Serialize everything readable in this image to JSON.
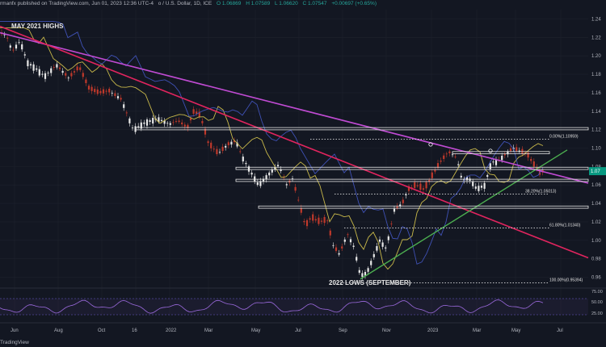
{
  "header": {
    "publisher": "rmanfx published on TradingView.com, Jun 01, 2023 12:36 UTC-4",
    "symbol": "o / U.S. Dollar, 1D, ICE",
    "o": "O 1.06869",
    "h": "H 1.07589",
    "l": "L 1.06620",
    "c": "C 1.07547",
    "chg": "+0.00697 (+0.65%)"
  },
  "footer": {
    "brand": "TradingView"
  },
  "annotations": {
    "may_highs": "MAY 2021 HIGHS",
    "lows_2022": "2022 LOWS (SEPTEMBER)"
  },
  "chart_data": {
    "type": "candlestick",
    "x_ticks": [
      "Jun",
      "Aug",
      "Oct",
      "16",
      "2022",
      "Mar",
      "May",
      "Jul",
      "Sep",
      "Nov",
      "2023",
      "Mar",
      "May",
      "Jul"
    ],
    "y_ticks": [
      "1.24",
      "1.22",
      "1.20",
      "1.18",
      "1.16",
      "1.14",
      "1.12",
      "1.10",
      "1.08",
      "1.06",
      "1.04",
      "1.02",
      "1.00",
      "0.98",
      "0.96"
    ],
    "ylim": [
      0.95,
      1.25
    ],
    "last_price": "1.07",
    "fib_levels": [
      {
        "label": "0.00%(1.10959)",
        "value": 1.10959
      },
      {
        "label": "38.20%(1.05013)",
        "value": 1.05013
      },
      {
        "label": "61.80%(1.01340)",
        "value": 1.0134
      },
      {
        "label": "100.00%(0.95394)",
        "value": 0.95394
      }
    ],
    "horizontal_levels": [
      1.121,
      1.095,
      1.078,
      1.065,
      1.036
    ],
    "price_path": [
      [
        0,
        1.225
      ],
      [
        8,
        1.222
      ],
      [
        15,
        1.205
      ],
      [
        25,
        1.216
      ],
      [
        34,
        1.193
      ],
      [
        45,
        1.186
      ],
      [
        55,
        1.178
      ],
      [
        70,
        1.19
      ],
      [
        85,
        1.176
      ],
      [
        98,
        1.188
      ],
      [
        110,
        1.165
      ],
      [
        122,
        1.16
      ],
      [
        135,
        1.162
      ],
      [
        150,
        1.153
      ],
      [
        165,
        1.12
      ],
      [
        180,
        1.128
      ],
      [
        195,
        1.132
      ],
      [
        210,
        1.126
      ],
      [
        220,
        1.13
      ],
      [
        232,
        1.122
      ],
      [
        240,
        1.14
      ],
      [
        248,
        1.135
      ],
      [
        258,
        1.105
      ],
      [
        270,
        1.094
      ],
      [
        282,
        1.104
      ],
      [
        292,
        1.108
      ],
      [
        300,
        1.09
      ],
      [
        310,
        1.075
      ],
      [
        320,
        1.06
      ],
      [
        335,
        1.074
      ],
      [
        345,
        1.082
      ],
      [
        355,
        1.06
      ],
      [
        362,
        1.067
      ],
      [
        370,
        1.041
      ],
      [
        378,
        1.015
      ],
      [
        385,
        1.025
      ],
      [
        395,
        1.02
      ],
      [
        405,
        1.022
      ],
      [
        412,
        0.995
      ],
      [
        420,
        0.985
      ],
      [
        430,
        1.007
      ],
      [
        438,
        0.993
      ],
      [
        446,
        0.962
      ],
      [
        454,
        0.965
      ],
      [
        462,
        0.982
      ],
      [
        470,
        1.0
      ],
      [
        478,
        0.991
      ],
      [
        488,
        1.033
      ],
      [
        498,
        1.04
      ],
      [
        505,
        1.055
      ],
      [
        515,
        1.06
      ],
      [
        525,
        1.055
      ],
      [
        535,
        1.07
      ],
      [
        545,
        1.085
      ],
      [
        555,
        1.096
      ],
      [
        565,
        1.09
      ],
      [
        572,
        1.065
      ],
      [
        580,
        1.068
      ],
      [
        590,
        1.056
      ],
      [
        600,
        1.06
      ],
      [
        608,
        1.085
      ],
      [
        615,
        1.085
      ],
      [
        625,
        1.093
      ],
      [
        635,
        1.1
      ],
      [
        643,
        1.097
      ],
      [
        652,
        1.094
      ],
      [
        660,
        1.083
      ],
      [
        668,
        1.073
      ],
      [
        672,
        1.075
      ]
    ],
    "rsi_ticks": [
      "75.00",
      "50.00",
      "25.00"
    ]
  }
}
